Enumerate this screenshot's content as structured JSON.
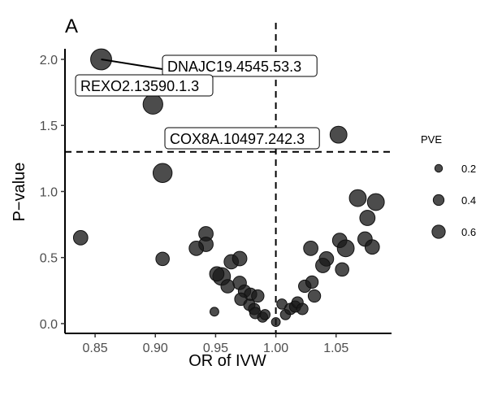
{
  "chart_data": {
    "type": "scatter",
    "panel_label": "A",
    "xlabel": "OR of IVW",
    "ylabel": "P−value",
    "xlim": [
      0.825,
      1.096
    ],
    "ylim": [
      -0.074,
      2.08
    ],
    "x_ticks": [
      0.85,
      0.9,
      0.95,
      1.0,
      1.05
    ],
    "x_tick_labels": [
      "0.85",
      "0.90",
      "0.95",
      "1.00",
      "1.05"
    ],
    "y_ticks": [
      0.0,
      0.5,
      1.0,
      1.5,
      2.0
    ],
    "y_tick_labels": [
      "0.0",
      "0.5",
      "1.0",
      "1.5",
      "2.0"
    ],
    "hline": 1.3,
    "vline": 1.0,
    "grid": false,
    "point_color": "#1a1a1a",
    "legend": {
      "title": "PVE",
      "placement": "right",
      "entries": [
        0.2,
        0.4,
        0.6
      ],
      "labels": [
        "0.2",
        "0.4",
        "0.6"
      ]
    },
    "labels": [
      {
        "text": "DNAJC19.4545.53.3",
        "x": 0.855,
        "y": 2.0
      },
      {
        "text": "REXO2.13590.1.3",
        "x": 0.898,
        "y": 1.66
      },
      {
        "text": "COX8A.10497.242.3",
        "x": 1.052,
        "y": 1.43
      }
    ],
    "points": [
      {
        "x": 0.855,
        "y": 2.0,
        "pve": 0.85
      },
      {
        "x": 0.898,
        "y": 1.66,
        "pve": 0.75
      },
      {
        "x": 1.052,
        "y": 1.43,
        "pve": 0.55
      },
      {
        "x": 0.906,
        "y": 1.14,
        "pve": 0.7
      },
      {
        "x": 0.838,
        "y": 0.65,
        "pve": 0.4
      },
      {
        "x": 0.906,
        "y": 0.49,
        "pve": 0.35
      },
      {
        "x": 0.942,
        "y": 0.68,
        "pve": 0.4
      },
      {
        "x": 0.942,
        "y": 0.6,
        "pve": 0.4
      },
      {
        "x": 0.934,
        "y": 0.57,
        "pve": 0.4
      },
      {
        "x": 0.949,
        "y": 0.09,
        "pve": 0.15
      },
      {
        "x": 1.068,
        "y": 0.95,
        "pve": 0.55
      },
      {
        "x": 1.083,
        "y": 0.92,
        "pve": 0.55
      },
      {
        "x": 1.076,
        "y": 0.8,
        "pve": 0.45
      },
      {
        "x": 1.074,
        "y": 0.64,
        "pve": 0.4
      },
      {
        "x": 1.08,
        "y": 0.58,
        "pve": 0.4
      },
      {
        "x": 1.053,
        "y": 0.63,
        "pve": 0.4
      },
      {
        "x": 1.058,
        "y": 0.57,
        "pve": 0.55
      },
      {
        "x": 1.029,
        "y": 0.57,
        "pve": 0.4
      },
      {
        "x": 1.042,
        "y": 0.49,
        "pve": 0.4
      },
      {
        "x": 1.039,
        "y": 0.44,
        "pve": 0.4
      },
      {
        "x": 1.055,
        "y": 0.41,
        "pve": 0.35
      },
      {
        "x": 0.955,
        "y": 0.357,
        "pve": 0.6
      },
      {
        "x": 0.951,
        "y": 0.376,
        "pve": 0.4
      },
      {
        "x": 0.96,
        "y": 0.283,
        "pve": 0.35
      },
      {
        "x": 0.963,
        "y": 0.468,
        "pve": 0.4
      },
      {
        "x": 0.97,
        "y": 0.492,
        "pve": 0.4
      },
      {
        "x": 0.97,
        "y": 0.308,
        "pve": 0.35
      },
      {
        "x": 0.974,
        "y": 0.246,
        "pve": 0.3
      },
      {
        "x": 0.979,
        "y": 0.222,
        "pve": 0.3
      },
      {
        "x": 0.985,
        "y": 0.209,
        "pve": 0.3
      },
      {
        "x": 0.971,
        "y": 0.185,
        "pve": 0.3
      },
      {
        "x": 0.978,
        "y": 0.142,
        "pve": 0.25
      },
      {
        "x": 0.982,
        "y": 0.111,
        "pve": 0.25
      },
      {
        "x": 0.983,
        "y": 0.08,
        "pve": 0.25
      },
      {
        "x": 0.989,
        "y": 0.049,
        "pve": 0.2
      },
      {
        "x": 0.991,
        "y": 0.068,
        "pve": 0.2
      },
      {
        "x": 1.0,
        "y": 0.012,
        "pve": 0.15
      },
      {
        "x": 1.005,
        "y": 0.148,
        "pve": 0.2
      },
      {
        "x": 1.008,
        "y": 0.068,
        "pve": 0.2
      },
      {
        "x": 1.012,
        "y": 0.111,
        "pve": 0.25
      },
      {
        "x": 1.016,
        "y": 0.129,
        "pve": 0.25
      },
      {
        "x": 1.018,
        "y": 0.16,
        "pve": 0.25
      },
      {
        "x": 1.022,
        "y": 0.111,
        "pve": 0.25
      },
      {
        "x": 1.024,
        "y": 0.283,
        "pve": 0.3
      },
      {
        "x": 1.03,
        "y": 0.314,
        "pve": 0.3
      },
      {
        "x": 1.032,
        "y": 0.209,
        "pve": 0.3
      }
    ]
  }
}
